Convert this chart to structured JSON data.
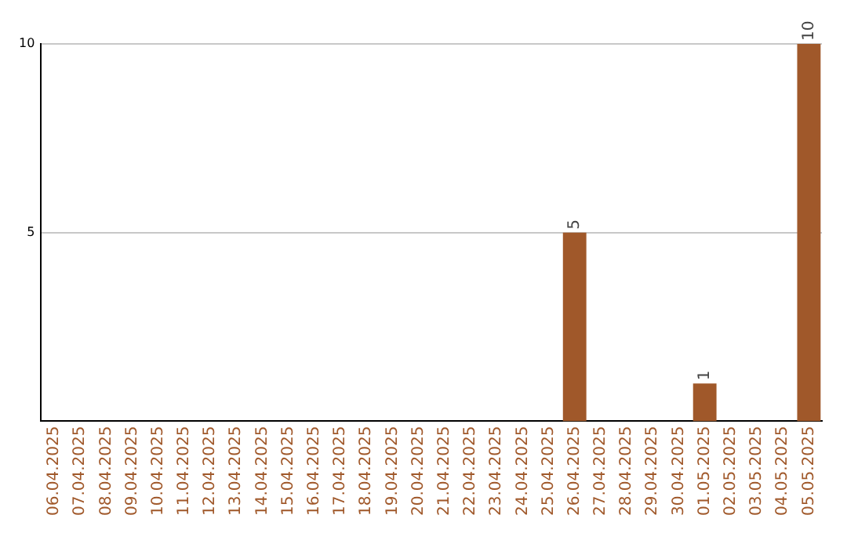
{
  "chart_data": {
    "type": "bar",
    "categories": [
      "06.04.2025",
      "07.04.2025",
      "08.04.2025",
      "09.04.2025",
      "10.04.2025",
      "11.04.2025",
      "12.04.2025",
      "13.04.2025",
      "14.04.2025",
      "15.04.2025",
      "16.04.2025",
      "17.04.2025",
      "18.04.2025",
      "19.04.2025",
      "20.04.2025",
      "21.04.2025",
      "22.04.2025",
      "23.04.2025",
      "24.04.2025",
      "25.04.2025",
      "26.04.2025",
      "27.04.2025",
      "28.04.2025",
      "29.04.2025",
      "30.04.2025",
      "01.05.2025",
      "02.05.2025",
      "03.05.2025",
      "04.05.2025",
      "05.05.2025"
    ],
    "values": [
      0,
      0,
      0,
      0,
      0,
      0,
      0,
      0,
      0,
      0,
      0,
      0,
      0,
      0,
      0,
      0,
      0,
      0,
      0,
      0,
      5,
      0,
      0,
      0,
      0,
      1,
      0,
      0,
      0,
      10
    ],
    "value_labels": [
      null,
      null,
      null,
      null,
      null,
      null,
      null,
      null,
      null,
      null,
      null,
      null,
      null,
      null,
      null,
      null,
      null,
      null,
      null,
      null,
      "5",
      null,
      null,
      null,
      null,
      "1",
      null,
      null,
      null,
      "10"
    ],
    "color": "#a0582a",
    "ylim": [
      0,
      10
    ],
    "yticks": [
      5,
      10
    ],
    "grid": "y",
    "legend": false
  }
}
